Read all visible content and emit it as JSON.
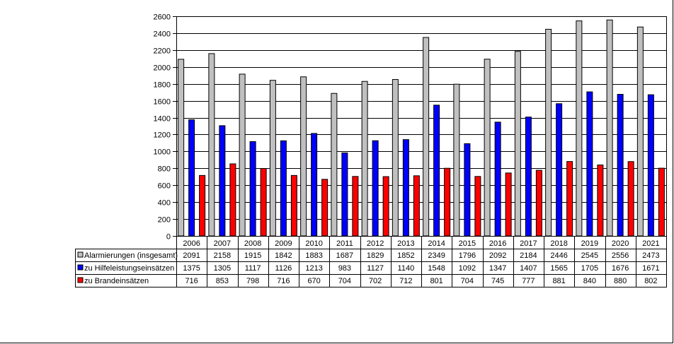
{
  "chart_data": {
    "type": "bar",
    "title": "",
    "xlabel": "",
    "ylabel": "",
    "ylim": [
      0,
      2600
    ],
    "yticks": [
      0,
      200,
      400,
      600,
      800,
      1000,
      1200,
      1400,
      1600,
      1800,
      2000,
      2200,
      2400,
      2600
    ],
    "grid": true,
    "legend": "data-table-left",
    "categories": [
      "2006",
      "2007",
      "2008",
      "2009",
      "2010",
      "2011",
      "2012",
      "2013",
      "2014",
      "2015",
      "2016",
      "2017",
      "2018",
      "2019",
      "2020",
      "2021"
    ],
    "series": [
      {
        "name": "Alarmierungen (insgesamt)",
        "color": "#c0c0c0",
        "values": [
          2091,
          2158,
          1915,
          1842,
          1883,
          1687,
          1829,
          1852,
          2349,
          1796,
          2092,
          2184,
          2446,
          2545,
          2556,
          2473
        ]
      },
      {
        "name": "zu Hilfeleistungseinsätzen",
        "color": "#0000ff",
        "values": [
          1375,
          1305,
          1117,
          1126,
          1213,
          983,
          1127,
          1140,
          1548,
          1092,
          1347,
          1407,
          1565,
          1705,
          1676,
          1671
        ]
      },
      {
        "name": "zu Brandeinsätzen",
        "color": "#ff0000",
        "values": [
          716,
          853,
          798,
          716,
          670,
          704,
          702,
          712,
          801,
          704,
          745,
          777,
          881,
          840,
          880,
          802
        ]
      }
    ]
  }
}
